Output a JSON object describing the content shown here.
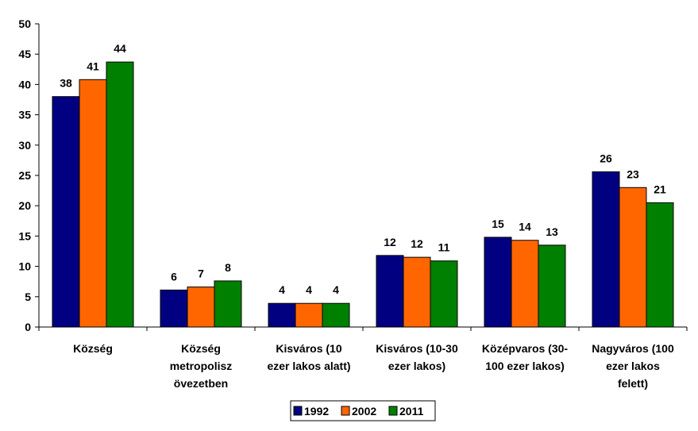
{
  "chart_data": {
    "type": "bar",
    "title": "",
    "xlabel": "",
    "ylabel": "",
    "ylim": [
      0,
      50
    ],
    "yticks": [
      0,
      5,
      10,
      15,
      20,
      25,
      30,
      35,
      40,
      45,
      50
    ],
    "grid": false,
    "legend_position": "bottom-center",
    "categories": [
      [
        "Község"
      ],
      [
        "Község",
        "metropolisz",
        "övezetben"
      ],
      [
        "Kisváros (10",
        "ezer lakos alatt)"
      ],
      [
        "Kisváros (10-30",
        "ezer lakos)"
      ],
      [
        "Középvaros (30-",
        "100 ezer lakos)"
      ],
      [
        "Nagyváros (100",
        "ezer lakos",
        "felett)"
      ]
    ],
    "series": [
      {
        "name": "1992",
        "color": "#000080",
        "values": [
          38.0,
          6.1,
          3.9,
          11.8,
          14.8,
          25.6
        ],
        "labels": [
          "38",
          "6",
          "4",
          "12",
          "15",
          "26"
        ]
      },
      {
        "name": "2002",
        "color": "#FF6600",
        "values": [
          40.8,
          6.6,
          3.9,
          11.5,
          14.3,
          23.0
        ],
        "labels": [
          "41",
          "7",
          "4",
          "12",
          "14",
          "23"
        ]
      },
      {
        "name": "2011",
        "color": "#008000",
        "values": [
          43.7,
          7.6,
          3.9,
          10.9,
          13.5,
          20.5
        ],
        "labels": [
          "44",
          "8",
          "4",
          "11",
          "13",
          "21"
        ]
      }
    ]
  }
}
